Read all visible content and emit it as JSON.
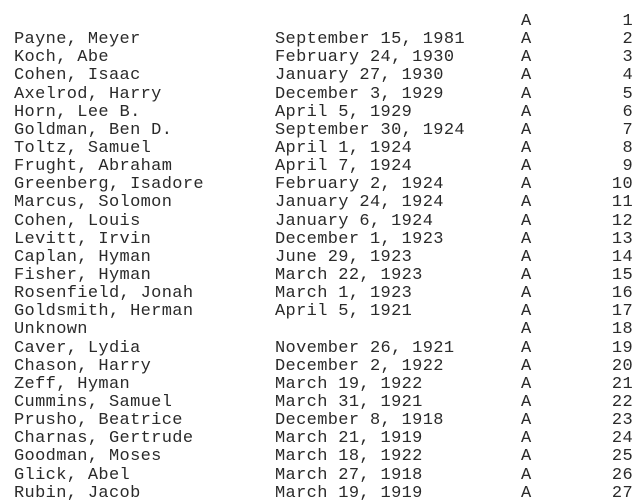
{
  "records": [
    {
      "name": "",
      "date": "",
      "code": "A",
      "number": "1"
    },
    {
      "name": "Payne, Meyer",
      "date": "September 15, 1981",
      "code": "A",
      "number": "2"
    },
    {
      "name": "Koch, Abe",
      "date": "February 24, 1930",
      "code": "A",
      "number": "3"
    },
    {
      "name": "Cohen, Isaac",
      "date": "January 27, 1930",
      "code": "A",
      "number": "4"
    },
    {
      "name": "Axelrod, Harry",
      "date": "December 3, 1929",
      "code": "A",
      "number": "5"
    },
    {
      "name": "Horn, Lee B.",
      "date": "April 5, 1929",
      "code": "A",
      "number": "6"
    },
    {
      "name": "Goldman, Ben D.",
      "date": "September 30, 1924",
      "code": "A",
      "number": "7"
    },
    {
      "name": "Toltz, Samuel",
      "date": "April 1, 1924",
      "code": "A",
      "number": "8"
    },
    {
      "name": "Frught, Abraham",
      "date": "April 7, 1924",
      "code": "A",
      "number": "9"
    },
    {
      "name": "Greenberg, Isadore",
      "date": "February 2, 1924",
      "code": "A",
      "number": "10"
    },
    {
      "name": "Marcus, Solomon",
      "date": "January 24, 1924",
      "code": "A",
      "number": "11"
    },
    {
      "name": "Cohen, Louis",
      "date": "January 6, 1924",
      "code": "A",
      "number": "12"
    },
    {
      "name": "Levitt, Irvin",
      "date": "December 1, 1923",
      "code": "A",
      "number": "13"
    },
    {
      "name": "Caplan, Hyman",
      "date": "June 29, 1923",
      "code": "A",
      "number": "14"
    },
    {
      "name": "Fisher, Hyman",
      "date": "March 22, 1923",
      "code": "A",
      "number": "15"
    },
    {
      "name": "Rosenfield, Jonah",
      "date": "March 1, 1923",
      "code": "A",
      "number": "16"
    },
    {
      "name": "Goldsmith, Herman",
      "date": "April 5, 1921",
      "code": "A",
      "number": "17"
    },
    {
      "name": "Unknown",
      "date": "",
      "code": "A",
      "number": "18"
    },
    {
      "name": "Caver, Lydia",
      "date": "November 26, 1921",
      "code": "A",
      "number": "19"
    },
    {
      "name": "Chason, Harry",
      "date": "December 2, 1922",
      "code": "A",
      "number": "20"
    },
    {
      "name": "Zeff, Hyman",
      "date": "March 19, 1922",
      "code": "A",
      "number": "21"
    },
    {
      "name": "Cummins, Samuel",
      "date": "March 31, 1921",
      "code": "A",
      "number": "22"
    },
    {
      "name": "Prusho, Beatrice",
      "date": "December 8, 1918",
      "code": "A",
      "number": "23"
    },
    {
      "name": "Charnas, Gertrude",
      "date": "March 21, 1919",
      "code": "A",
      "number": "24"
    },
    {
      "name": "Goodman, Moses",
      "date": "March 18, 1922",
      "code": "A",
      "number": "25"
    },
    {
      "name": "Glick, Abel",
      "date": "March 27, 1918",
      "code": "A",
      "number": "26"
    },
    {
      "name": "Rubin, Jacob",
      "date": "March 19, 1919",
      "code": "A",
      "number": "27"
    }
  ]
}
